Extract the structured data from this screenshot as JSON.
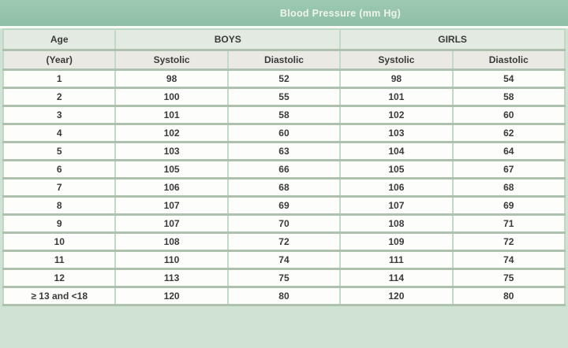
{
  "title_bar": {
    "title": "Blood Pressure (mm Hg)"
  },
  "table": {
    "group_headers": {
      "age": "Age",
      "boys": "BOYS",
      "girls": "GIRLS"
    },
    "sub_headers": {
      "age_unit": "(Year)",
      "boys_systolic": "Systolic",
      "boys_diastolic": "Diastolic",
      "girls_systolic": "Systolic",
      "girls_diastolic": "Diastolic"
    },
    "rows": [
      {
        "age": "1",
        "boys_systolic": "98",
        "boys_diastolic": "52",
        "girls_systolic": "98",
        "girls_diastolic": "54"
      },
      {
        "age": "2",
        "boys_systolic": "100",
        "boys_diastolic": "55",
        "girls_systolic": "101",
        "girls_diastolic": "58"
      },
      {
        "age": "3",
        "boys_systolic": "101",
        "boys_diastolic": "58",
        "girls_systolic": "102",
        "girls_diastolic": "60"
      },
      {
        "age": "4",
        "boys_systolic": "102",
        "boys_diastolic": "60",
        "girls_systolic": "103",
        "girls_diastolic": "62"
      },
      {
        "age": "5",
        "boys_systolic": "103",
        "boys_diastolic": "63",
        "girls_systolic": "104",
        "girls_diastolic": "64"
      },
      {
        "age": "6",
        "boys_systolic": "105",
        "boys_diastolic": "66",
        "girls_systolic": "105",
        "girls_diastolic": "67"
      },
      {
        "age": "7",
        "boys_systolic": "106",
        "boys_diastolic": "68",
        "girls_systolic": "106",
        "girls_diastolic": "68"
      },
      {
        "age": "8",
        "boys_systolic": "107",
        "boys_diastolic": "69",
        "girls_systolic": "107",
        "girls_diastolic": "69"
      },
      {
        "age": "9",
        "boys_systolic": "107",
        "boys_diastolic": "70",
        "girls_systolic": "108",
        "girls_diastolic": "71"
      },
      {
        "age": "10",
        "boys_systolic": "108",
        "boys_diastolic": "72",
        "girls_systolic": "109",
        "girls_diastolic": "72"
      },
      {
        "age": "11",
        "boys_systolic": "110",
        "boys_diastolic": "74",
        "girls_systolic": "111",
        "girls_diastolic": "74"
      },
      {
        "age": "12",
        "boys_systolic": "113",
        "boys_diastolic": "75",
        "girls_systolic": "114",
        "girls_diastolic": "75"
      },
      {
        "age": "≥ 13 and <18",
        "boys_systolic": "120",
        "boys_diastolic": "80",
        "girls_systolic": "120",
        "girls_diastolic": "80"
      }
    ]
  },
  "colors": {
    "title_bar_bg": "#8ec0a5",
    "title_text": "#eef3ec",
    "group_header_bg": "#e2eae1",
    "sub_header_bg": "#eae9e4",
    "cell_bg": "#fdfdfc",
    "grid_vertical": "#c1d9c7",
    "grid_horizontal": "#aec1af",
    "frame_bg": "#cfe2d3",
    "cell_text": "#3a3a3a"
  },
  "chart_data": {
    "type": "table",
    "title": "Blood Pressure (mm Hg)",
    "columns": [
      "Age (Year)",
      "Boys Systolic",
      "Boys Diastolic",
      "Girls Systolic",
      "Girls Diastolic"
    ],
    "rows": [
      [
        "1",
        98,
        52,
        98,
        54
      ],
      [
        "2",
        100,
        55,
        101,
        58
      ],
      [
        "3",
        101,
        58,
        102,
        60
      ],
      [
        "4",
        102,
        60,
        103,
        62
      ],
      [
        "5",
        103,
        63,
        104,
        64
      ],
      [
        "6",
        105,
        66,
        105,
        67
      ],
      [
        "7",
        106,
        68,
        106,
        68
      ],
      [
        "8",
        107,
        69,
        107,
        69
      ],
      [
        "9",
        107,
        70,
        108,
        71
      ],
      [
        "10",
        108,
        72,
        109,
        72
      ],
      [
        "11",
        110,
        74,
        111,
        74
      ],
      [
        "12",
        113,
        75,
        114,
        75
      ],
      [
        "≥ 13 and <18",
        120,
        80,
        120,
        80
      ]
    ]
  }
}
